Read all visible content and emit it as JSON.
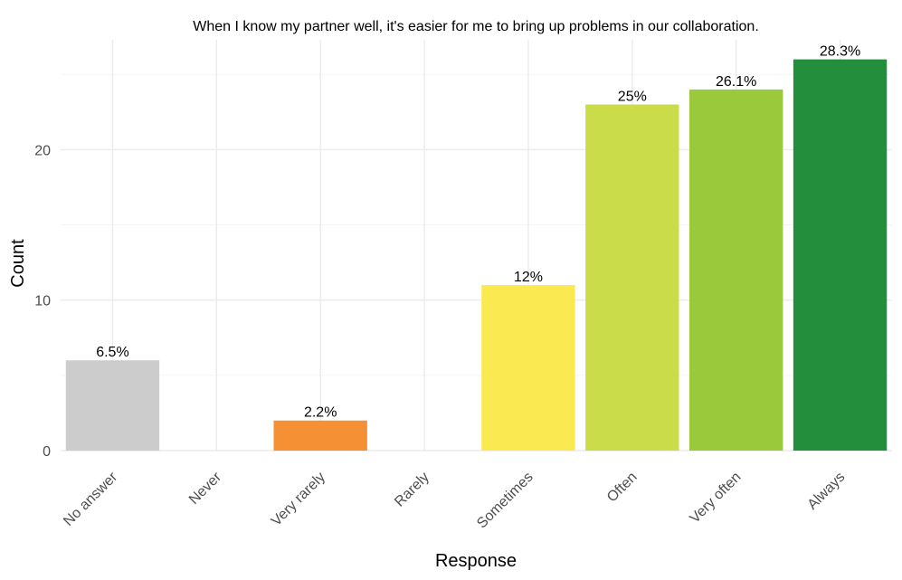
{
  "chart_data": {
    "type": "bar",
    "title": "When I know my partner well, it's easier for me to bring up problems in our collaboration.",
    "xlabel": "Response",
    "ylabel": "Count",
    "categories": [
      "No answer",
      "Never",
      "Very rarely",
      "Rarely",
      "Sometimes",
      "Often",
      "Very often",
      "Always"
    ],
    "values": [
      6,
      0,
      2,
      0,
      11,
      23,
      24,
      26
    ],
    "labels": [
      "6.5%",
      "",
      "2.2%",
      "",
      "12%",
      "25%",
      "26.1%",
      "28.3%"
    ],
    "colors": [
      "#cccccc",
      "#cccccc",
      "#f69035",
      "#f69035",
      "#fbe951",
      "#cbdc4a",
      "#9aca3c",
      "#238e3c"
    ],
    "yticks": [
      0,
      10,
      20
    ],
    "ylim": [
      0,
      27.3
    ],
    "grid": true,
    "legend": "none"
  }
}
